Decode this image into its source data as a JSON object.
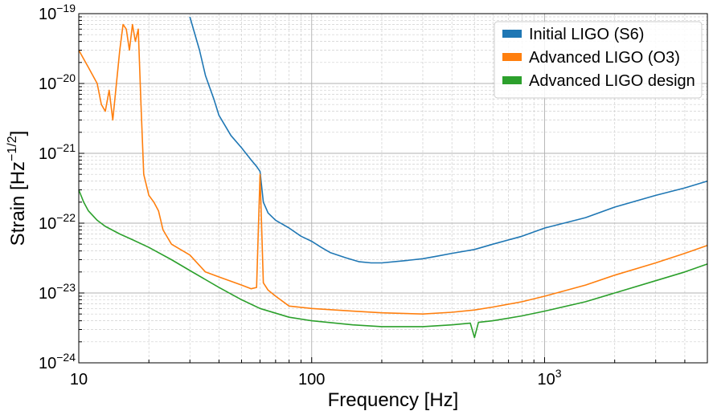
{
  "chart_data": {
    "type": "line",
    "title": "",
    "xlabel": "Frequency [Hz]",
    "ylabel": "Strain [Hz",
    "ylabel_exponent": "−1/2",
    "ylabel_close": "]",
    "xscale": "log",
    "yscale": "log",
    "xlim": [
      10,
      5000
    ],
    "ylim": [
      1e-24,
      1e-19
    ],
    "grid": true,
    "legend_position": "top-right",
    "x_ticks": [
      {
        "value": 10,
        "label": "10"
      },
      {
        "value": 100,
        "label": "100"
      },
      {
        "value": 1000,
        "label": "10",
        "exponent": "3"
      }
    ],
    "y_ticks": [
      {
        "value": 1e-24,
        "base": "10",
        "exponent": "−24"
      },
      {
        "value": 1e-23,
        "base": "10",
        "exponent": "−23"
      },
      {
        "value": 1e-22,
        "base": "10",
        "exponent": "−22"
      },
      {
        "value": 1e-21,
        "base": "10",
        "exponent": "−21"
      },
      {
        "value": 1e-20,
        "base": "10",
        "exponent": "−20"
      },
      {
        "value": 1e-19,
        "base": "10",
        "exponent": "−19"
      }
    ],
    "series": [
      {
        "name": "Initial LIGO (S6)",
        "color": "#1f77b4",
        "x": [
          30,
          33,
          35,
          38,
          40,
          45,
          50,
          55,
          58,
          60,
          62,
          65,
          70,
          80,
          90,
          100,
          110,
          120,
          140,
          160,
          180,
          200,
          250,
          300,
          350,
          400,
          500,
          600,
          800,
          1000,
          1500,
          2000,
          3000,
          4000,
          5000
        ],
        "y": [
          9e-20,
          3e-20,
          1.3e-20,
          6e-21,
          3.5e-21,
          1.8e-21,
          1.2e-21,
          8e-22,
          6.5e-22,
          5.5e-22,
          2e-22,
          1.4e-22,
          1.1e-22,
          8.5e-23,
          6.5e-23,
          5.5e-23,
          4.5e-23,
          3.8e-23,
          3.2e-23,
          2.8e-23,
          2.7e-23,
          2.7e-23,
          2.9e-23,
          3.1e-23,
          3.4e-23,
          3.7e-23,
          4.2e-23,
          5e-23,
          6.5e-23,
          8.5e-23,
          1.2e-22,
          1.7e-22,
          2.5e-22,
          3.2e-22,
          4e-22
        ]
      },
      {
        "name": "Advanced LIGO (O3)",
        "color": "#ff7f0e",
        "x": [
          10,
          11,
          12,
          12.5,
          13,
          13.5,
          14,
          15,
          15.5,
          16,
          16.5,
          17,
          17.5,
          18,
          18.5,
          19,
          20,
          21,
          22,
          23,
          25,
          30,
          35,
          40,
          50,
          55,
          58,
          60,
          62,
          65,
          70,
          80,
          100,
          150,
          200,
          300,
          400,
          500,
          600,
          800,
          1000,
          1500,
          2000,
          3000,
          4000,
          5000
        ],
        "y": [
          3e-20,
          1.7e-20,
          1e-20,
          5e-21,
          4e-21,
          8e-21,
          3e-21,
          3e-20,
          7e-20,
          6e-20,
          3e-20,
          7e-20,
          4e-20,
          6e-20,
          5e-21,
          5e-22,
          2.5e-22,
          2e-22,
          1.5e-22,
          8e-23,
          5e-23,
          3.5e-23,
          2e-23,
          1.7e-23,
          1.3e-23,
          1.15e-23,
          1.2e-23,
          5e-22,
          1.4e-23,
          1.1e-23,
          9e-24,
          6.5e-24,
          6e-24,
          5.5e-24,
          5.2e-24,
          5e-24,
          5.3e-24,
          5.7e-24,
          6.3e-24,
          7.5e-24,
          9e-24,
          1.3e-23,
          1.8e-23,
          2.7e-23,
          3.7e-23,
          4.8e-23
        ]
      },
      {
        "name": "Advanced LIGO design",
        "color": "#2ca02c",
        "x": [
          10,
          10.5,
          11,
          12,
          13,
          15,
          17,
          20,
          25,
          30,
          40,
          50,
          60,
          80,
          100,
          150,
          200,
          250,
          300,
          400,
          480,
          500,
          520,
          600,
          800,
          1000,
          1500,
          2000,
          3000,
          4000,
          5000
        ],
        "y": [
          3e-22,
          2e-22,
          1.5e-22,
          1.1e-22,
          9e-23,
          7e-23,
          5.8e-23,
          4.5e-23,
          3e-23,
          2.1e-23,
          1.2e-23,
          8e-24,
          6e-24,
          4.5e-24,
          4e-24,
          3.5e-24,
          3.3e-24,
          3.3e-24,
          3.3e-24,
          3.5e-24,
          3.7e-24,
          2.3e-24,
          3.8e-24,
          4e-24,
          4.7e-24,
          5.5e-24,
          7.5e-24,
          1e-23,
          1.5e-23,
          2e-23,
          2.6e-23
        ]
      }
    ]
  }
}
